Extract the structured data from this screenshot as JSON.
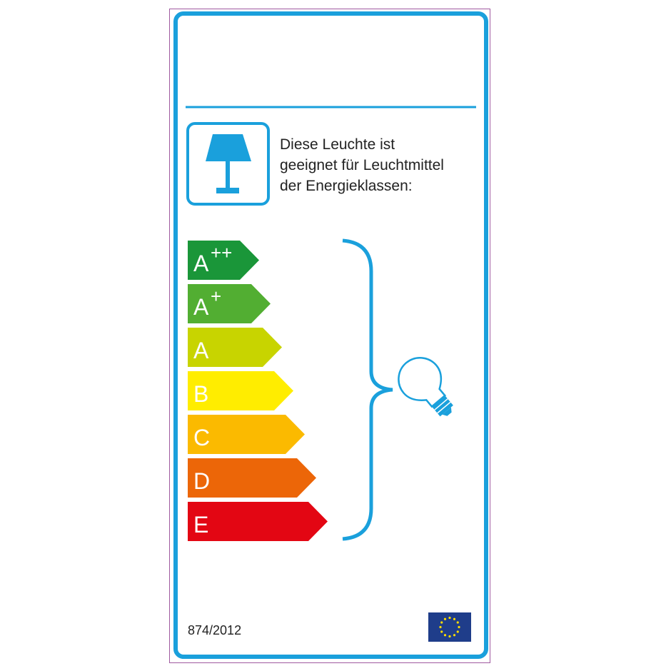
{
  "label": {
    "intro_lines": [
      "Diese Leuchte ist",
      "geeignet für Leuchtmittel",
      "der Energieklassen:"
    ],
    "regulation": "874/2012",
    "frame_color": "#1aa0dc",
    "icons": [
      "table-lamp-icon",
      "light-bulb-icon",
      "eu-flag-icon"
    ],
    "classes": [
      {
        "letter": "A",
        "sup": "++",
        "color": "#1a9639"
      },
      {
        "letter": "A",
        "sup": "+",
        "color": "#52ae32"
      },
      {
        "letter": "A",
        "sup": "",
        "color": "#c8d400"
      },
      {
        "letter": "B",
        "sup": "",
        "color": "#ffed00"
      },
      {
        "letter": "C",
        "sup": "",
        "color": "#fbba00"
      },
      {
        "letter": "D",
        "sup": "",
        "color": "#ec6608"
      },
      {
        "letter": "E",
        "sup": "",
        "color": "#e30613"
      }
    ]
  }
}
